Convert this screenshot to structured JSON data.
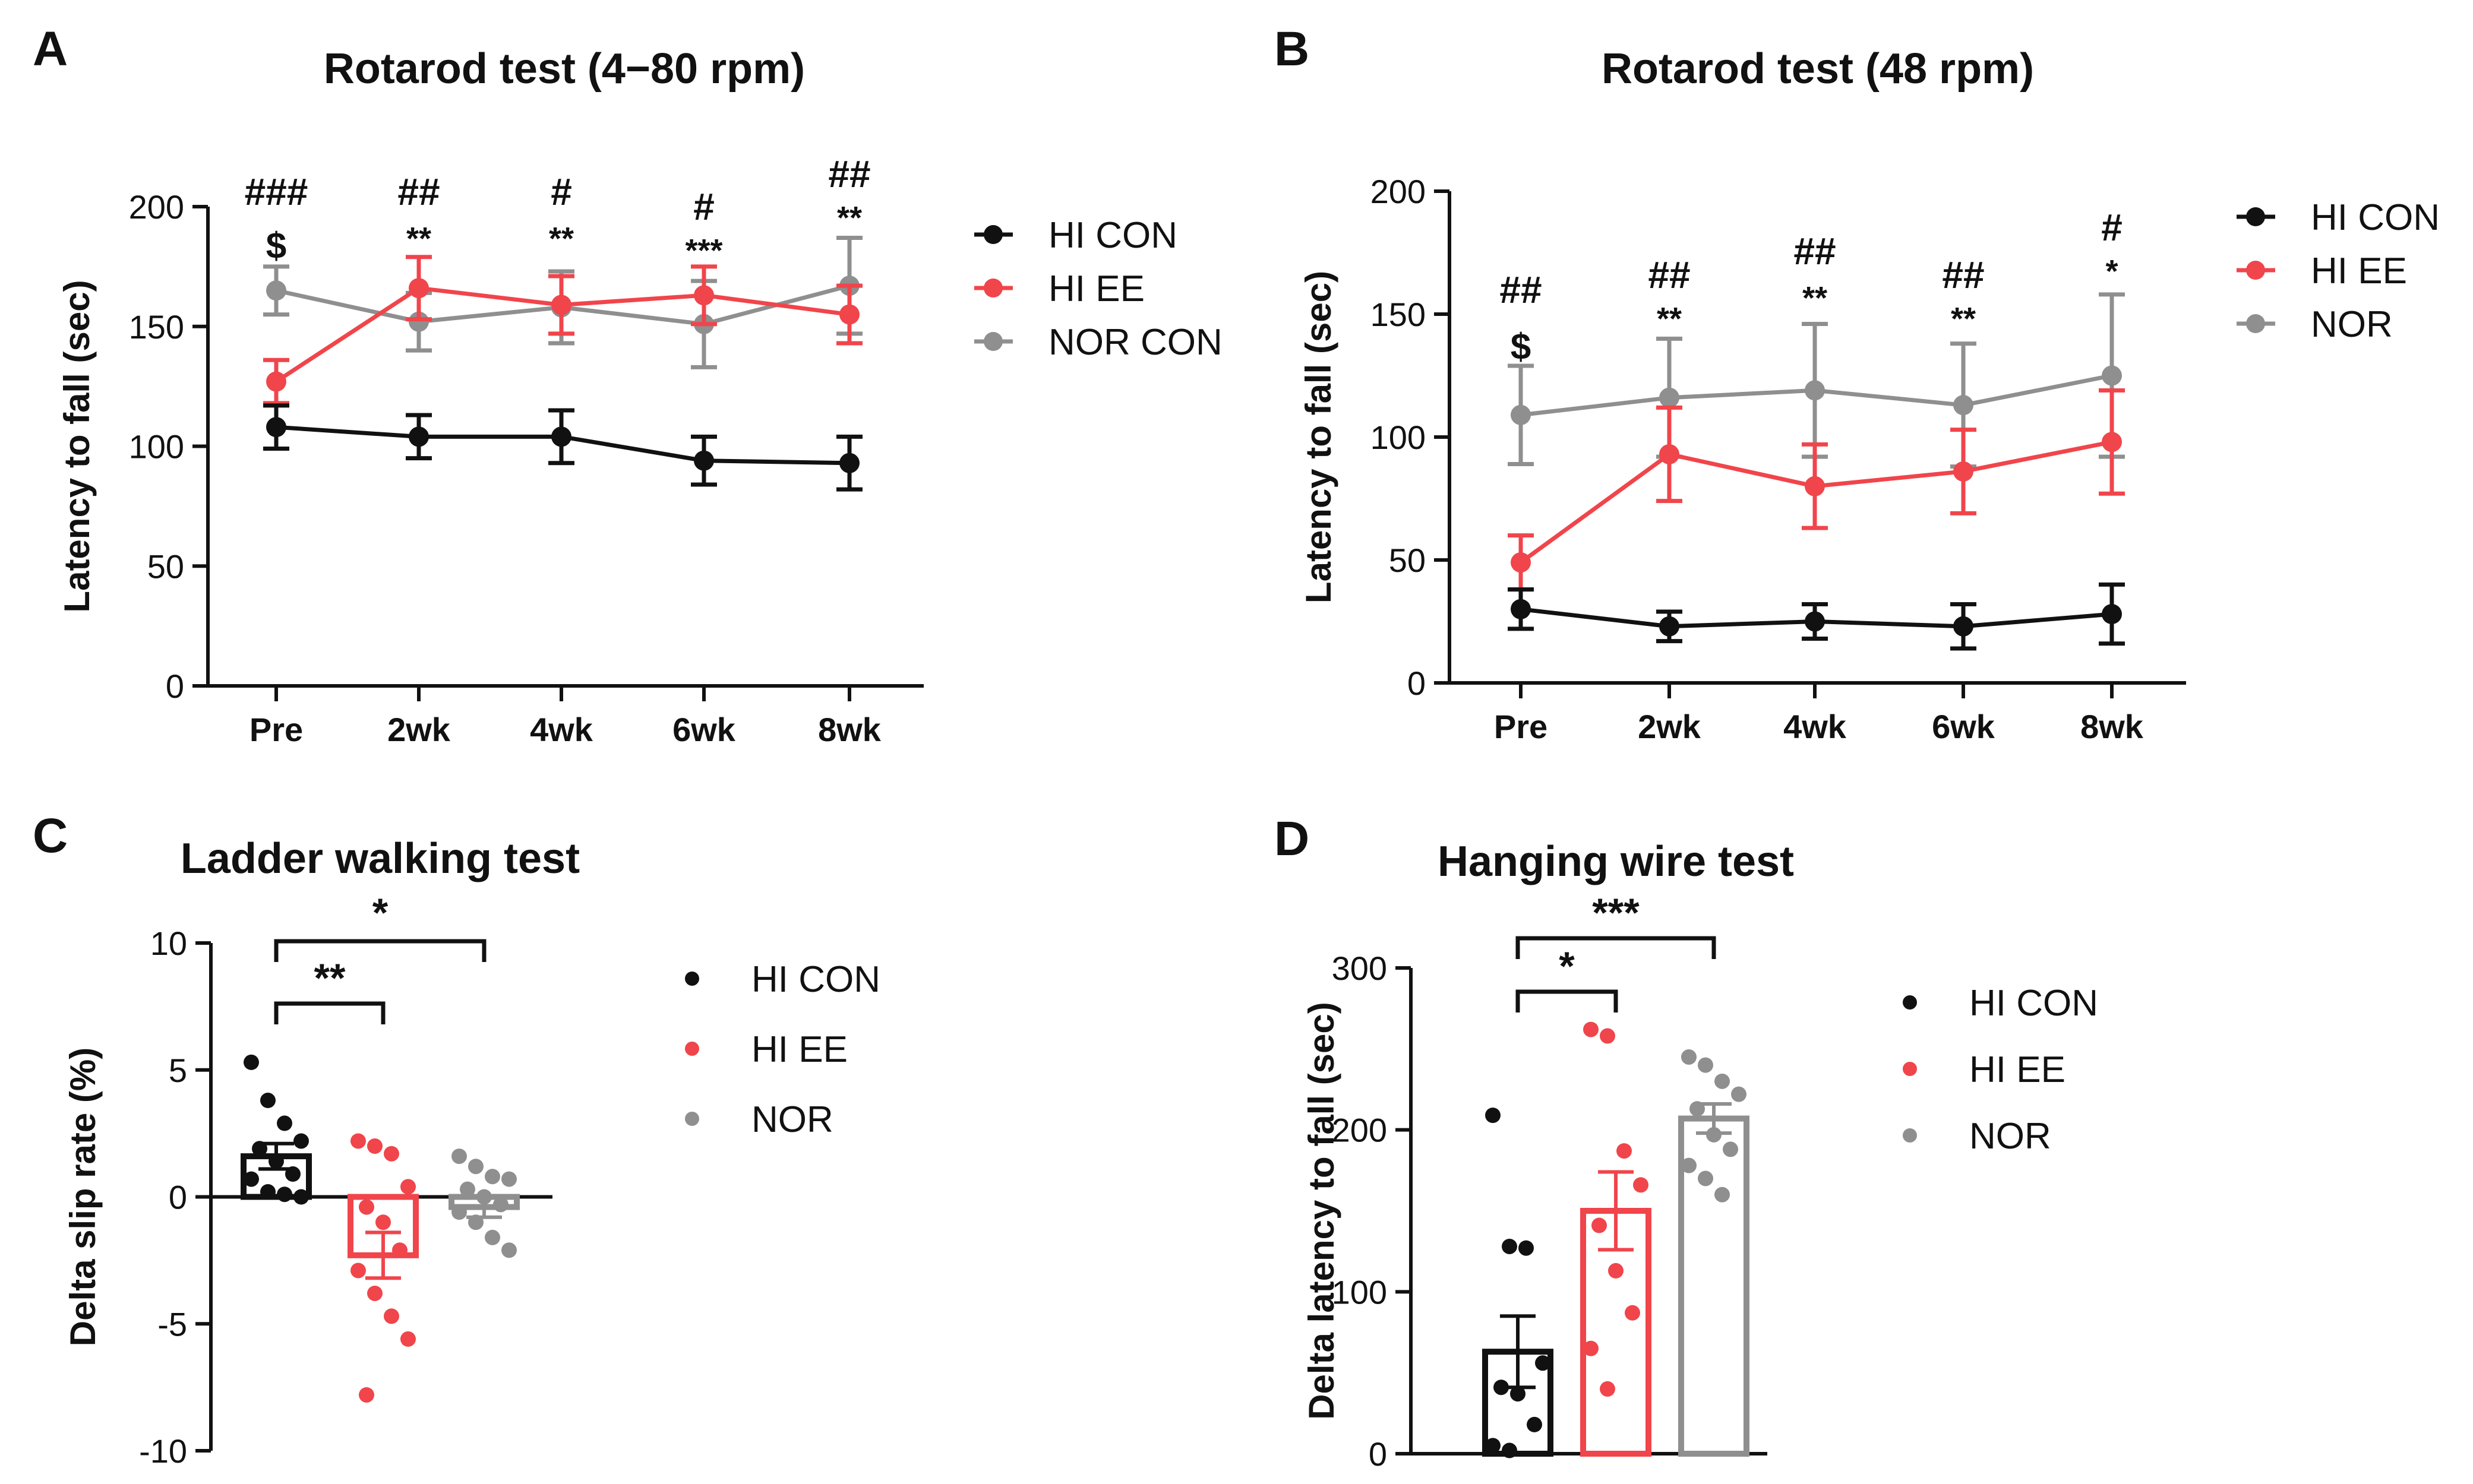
{
  "panels": {
    "A": "A",
    "B": "B",
    "C": "C",
    "D": "D"
  },
  "colors": {
    "hi_con": "#111111",
    "hi_ee": "#f0454b",
    "nor": "#8f8f8f"
  },
  "chart_data": [
    {
      "type": "line",
      "panel": "A",
      "title": "Rotarod test (4−80 rpm)",
      "xlabel": "",
      "ylabel": "Latency to fall (sec)",
      "ylim": [
        0,
        200
      ],
      "yticks": [
        "0",
        "50",
        "100",
        "150",
        "200"
      ],
      "categories": [
        "Pre",
        "2wk",
        "4wk",
        "6wk",
        "8wk"
      ],
      "legend": [
        "HI CON",
        "HI EE",
        "NOR CON"
      ],
      "series": [
        {
          "name": "HI CON",
          "color": "#111111",
          "values": [
            108,
            104,
            104,
            94,
            93
          ],
          "err": [
            9,
            9,
            11,
            10,
            11
          ]
        },
        {
          "name": "HI EE",
          "color": "#f0454b",
          "values": [
            127,
            166,
            159,
            163,
            155
          ],
          "err": [
            9,
            13,
            12,
            12,
            12
          ]
        },
        {
          "name": "NOR CON",
          "color": "#8f8f8f",
          "values": [
            165,
            152,
            158,
            151,
            167
          ],
          "err": [
            10,
            12,
            15,
            18,
            20
          ]
        }
      ],
      "annotations_hash": [
        "###",
        "##",
        "#",
        "#",
        "##"
      ],
      "annotations_star": [
        "$",
        "**",
        "**",
        "***",
        "**"
      ]
    },
    {
      "type": "line",
      "panel": "B",
      "title": "Rotarod test (48 rpm)",
      "xlabel": "",
      "ylabel": "Latency to fall (sec)",
      "ylim": [
        0,
        200
      ],
      "yticks": [
        "0",
        "50",
        "100",
        "150",
        "200"
      ],
      "categories": [
        "Pre",
        "2wk",
        "4wk",
        "6wk",
        "8wk"
      ],
      "legend": [
        "HI CON",
        "HI EE",
        "NOR"
      ],
      "series": [
        {
          "name": "HI CON",
          "color": "#111111",
          "values": [
            30,
            23,
            25,
            23,
            28
          ],
          "err": [
            8,
            6,
            7,
            9,
            12
          ]
        },
        {
          "name": "HI EE",
          "color": "#f0454b",
          "values": [
            49,
            93,
            80,
            86,
            98
          ],
          "err": [
            11,
            19,
            17,
            17,
            21
          ]
        },
        {
          "name": "NOR",
          "color": "#8f8f8f",
          "values": [
            109,
            116,
            119,
            113,
            125
          ],
          "err": [
            20,
            24,
            27,
            25,
            33
          ]
        }
      ],
      "annotations_hash": [
        "##",
        "##",
        "##",
        "##",
        "#"
      ],
      "annotations_star": [
        "$",
        "**",
        "**",
        "**",
        "*"
      ]
    },
    {
      "type": "bar",
      "panel": "C",
      "title": "Ladder walking test",
      "xlabel": "",
      "ylabel": "Delta slip rate (%)",
      "ylim": [
        -10,
        10
      ],
      "yticks": [
        "-10",
        "-5",
        "0",
        "5",
        "10"
      ],
      "categories": [
        "HI CON",
        "HI EE",
        "NOR"
      ],
      "legend": [
        "HI CON",
        "HI EE",
        "NOR"
      ],
      "values": [
        1.6,
        -2.3,
        -0.4
      ],
      "err": [
        0.5,
        0.9,
        0.4
      ],
      "points": [
        [
          5.3,
          3.8,
          2.9,
          2.2,
          1.9,
          1.4,
          0.9,
          0.7,
          0.2,
          0.1,
          0.0
        ],
        [
          2.2,
          2.0,
          1.7,
          0.4,
          -0.4,
          -1.0,
          -2.1,
          -2.9,
          -3.8,
          -4.7,
          -5.6,
          -7.8
        ],
        [
          1.6,
          1.2,
          0.8,
          0.7,
          0.3,
          0.0,
          -0.3,
          -0.6,
          -1.0,
          -1.6,
          -2.1
        ]
      ],
      "comparisons": [
        {
          "from": 0,
          "to": 1,
          "label": "**"
        },
        {
          "from": 0,
          "to": 2,
          "label": "*"
        }
      ]
    },
    {
      "type": "bar",
      "panel": "D",
      "title": "Hanging wire test",
      "xlabel": "",
      "ylabel": "Delta latency to fall (sec)",
      "ylim": [
        0,
        300
      ],
      "yticks": [
        "0",
        "100",
        "200",
        "300"
      ],
      "categories": [
        "HI CON",
        "HI EE",
        "NOR"
      ],
      "legend": [
        "HI CON",
        "HI EE",
        "NOR"
      ],
      "values": [
        63,
        150,
        207
      ],
      "err": [
        22,
        24,
        9
      ],
      "points": [
        [
          209,
          128,
          127,
          56,
          41,
          37,
          18,
          5,
          2
        ],
        [
          262,
          258,
          187,
          166,
          141,
          113,
          87,
          65,
          40
        ],
        [
          245,
          240,
          230,
          222,
          213,
          197,
          188,
          178,
          170,
          160
        ]
      ],
      "comparisons": [
        {
          "from": 0,
          "to": 1,
          "label": "*"
        },
        {
          "from": 0,
          "to": 2,
          "label": "***"
        }
      ]
    }
  ]
}
